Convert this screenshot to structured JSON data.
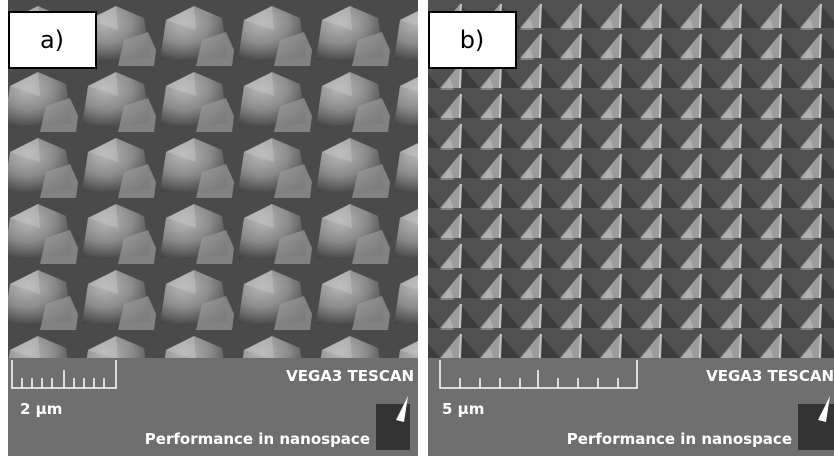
{
  "panels": [
    {
      "label": "a)",
      "scale": "2 µm",
      "brand": "VEGA3 TESCAN",
      "slogan": "Performance in nanospace"
    },
    {
      "label": "b)",
      "scale": "5 µm",
      "brand": "VEGA3 TESCAN",
      "slogan": "Performance in nanospace"
    }
  ]
}
